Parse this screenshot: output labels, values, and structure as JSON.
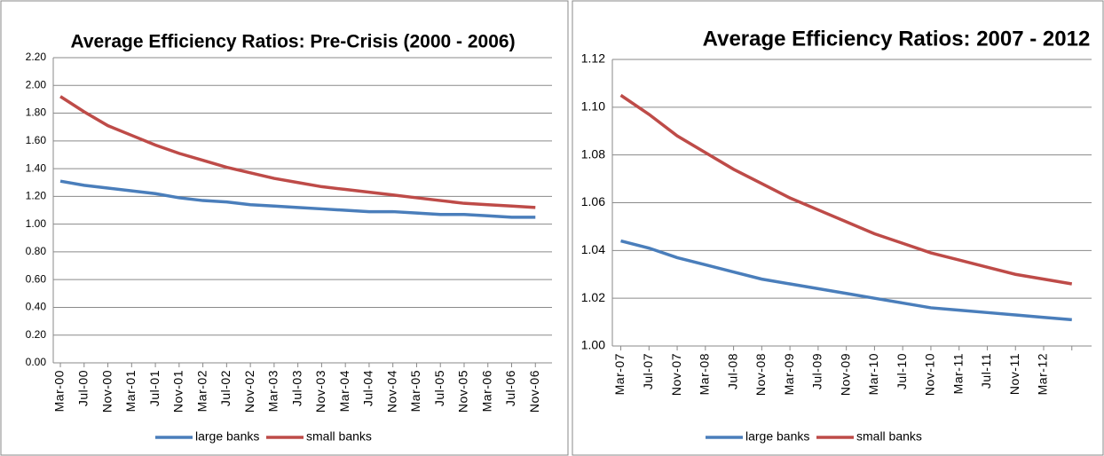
{
  "chart_data": [
    {
      "type": "line",
      "title": "Average Efficiency Ratios: Pre-Crisis (2000 - 2006)",
      "categories": [
        "Mar-00",
        "Jul-00",
        "Nov-00",
        "Mar-01",
        "Jul-01",
        "Nov-01",
        "Mar-02",
        "Jul-02",
        "Nov-02",
        "Mar-03",
        "Jul-03",
        "Nov-03",
        "Mar-04",
        "Jul-04",
        "Nov-04",
        "Mar-05",
        "Jul-05",
        "Nov-05",
        "Mar-06",
        "Jul-06",
        "Nov-06"
      ],
      "series": [
        {
          "name": "large banks",
          "color": "#4a7ebb",
          "values": [
            1.31,
            1.28,
            1.26,
            1.24,
            1.22,
            1.19,
            1.17,
            1.16,
            1.14,
            1.13,
            1.12,
            1.11,
            1.1,
            1.09,
            1.09,
            1.08,
            1.07,
            1.07,
            1.06,
            1.05,
            1.05
          ]
        },
        {
          "name": "small banks",
          "color": "#be4b48",
          "values": [
            1.92,
            1.81,
            1.71,
            1.64,
            1.57,
            1.51,
            1.46,
            1.41,
            1.37,
            1.33,
            1.3,
            1.27,
            1.25,
            1.23,
            1.21,
            1.19,
            1.17,
            1.15,
            1.14,
            1.13,
            1.12
          ]
        }
      ],
      "ylim": [
        0,
        2.2
      ],
      "yticks": [
        {
          "value": 0,
          "label": "0.00"
        },
        {
          "value": 0.2,
          "label": "0.20"
        },
        {
          "value": 0.4,
          "label": "0.40"
        },
        {
          "value": 0.6,
          "label": "0.60"
        },
        {
          "value": 0.8,
          "label": "0.80"
        },
        {
          "value": 1,
          "label": "1.00"
        },
        {
          "value": 1.2,
          "label": "1.20"
        },
        {
          "value": 1.4,
          "label": "1.40"
        },
        {
          "value": 1.6,
          "label": "1.60"
        },
        {
          "value": 1.8,
          "label": "1.80"
        },
        {
          "value": 2,
          "label": "2.00"
        },
        {
          "value": 2.2,
          "label": "2.20"
        }
      ],
      "grid": true,
      "legend": "bottom"
    },
    {
      "type": "line",
      "title": "Average Efficiency Ratios: 2007 - 2012",
      "categories": [
        "Mar-07",
        "Jul-07",
        "Nov-07",
        "Mar-08",
        "Jul-08",
        "Nov-08",
        "Mar-09",
        "Jul-09",
        "Nov-09",
        "Mar-10",
        "Jul-10",
        "Nov-10",
        "Mar-11",
        "Jul-11",
        "Nov-11",
        "Mar-12",
        null
      ],
      "series": [
        {
          "name": "large banks",
          "color": "#4a7ebb",
          "values": [
            1.044,
            1.041,
            1.037,
            1.034,
            1.031,
            1.028,
            1.026,
            1.024,
            1.022,
            1.02,
            1.018,
            1.016,
            1.015,
            1.014,
            1.013,
            1.012,
            1.011
          ]
        },
        {
          "name": "small banks",
          "color": "#be4b48",
          "values": [
            1.105,
            1.097,
            1.088,
            1.081,
            1.074,
            1.068,
            1.062,
            1.057,
            1.052,
            1.047,
            1.043,
            1.039,
            1.036,
            1.033,
            1.03,
            1.028,
            1.026
          ]
        }
      ],
      "ylim": [
        1,
        1.12
      ],
      "yticks": [
        {
          "value": 1,
          "label": "1.00"
        },
        1.02,
        1.04,
        1.06,
        1.08,
        {
          "value": 1.1,
          "label": "1.10"
        },
        1.12
      ],
      "grid": true,
      "legend": "bottom"
    }
  ]
}
